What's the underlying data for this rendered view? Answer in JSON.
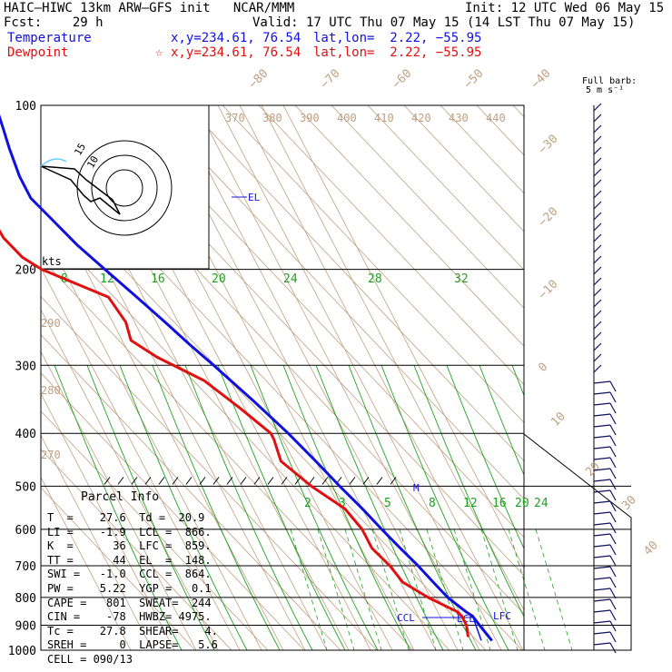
{
  "header": {
    "model": "HAIC–HIWC 13km ARW–GFS init",
    "org": "NCAR/MMM",
    "init": "Init: 12 UTC Wed 06 May 15",
    "fcst": "Fcst:    29 h",
    "valid": "Valid: 17 UTC Thu 07 May 15 (14 LST Thu 07 May 15)",
    "temp_label": "Temperature",
    "temp_xy": "x,y=234.61, 76.54",
    "temp_latlon": "lat,lon=  2.22, −55.95",
    "dew_label": "Dewpoint",
    "dew_xy": "x,y=234.61, 76.54",
    "dew_latlon": "lat,lon=  2.22, −55.95",
    "star": "☆"
  },
  "barb_key": {
    "line1": "Full barb:",
    "line2": "5 m s⁻¹"
  },
  "parcel": {
    "title": "Parcel Info",
    "rows": [
      "T  =    27.6  Td =  20.9",
      "LI =    -1.9  LCL =  866.",
      "K  =      36  LFC =  859.",
      "TT =      44  EL  =  148.",
      "SWI =   -1.0  CCL =  864.",
      "PW =    5.22  YGP =   0.1",
      "CAPE =   801  SWEAT=  244",
      "CIN =    -78  HWBZ= 4975.",
      "Tc =    27.8  SHEAR=    4.",
      "SREH =     0  LAPSE=   5.6",
      "CELL = 090/13"
    ]
  },
  "hodograph": {
    "units_label": "kts",
    "ring_labels": [
      "10",
      "15"
    ]
  },
  "chart_data": {
    "type": "line",
    "title": "",
    "xlabel": "",
    "ylabel": "",
    "pressure_axis": {
      "label_values": [
        100,
        200,
        300,
        400,
        500,
        600,
        700,
        800,
        900,
        1000
      ],
      "scale": "log"
    },
    "isotherm_labels": [
      "−80",
      "−70",
      "−60",
      "−50",
      "−40",
      "−30",
      "−20",
      "−10",
      "0",
      "10",
      "20",
      "30",
      "40"
    ],
    "theta_labels_top": [
      "370",
      "380",
      "390",
      "400",
      "410",
      "420",
      "430",
      "440"
    ],
    "theta_labels_left": [
      "290",
      "280",
      "270"
    ],
    "mixing_ratio_labels_upper": [
      "8",
      "12",
      "16",
      "20",
      "24",
      "28",
      "32"
    ],
    "mixing_ratio_labels_lower": [
      "2",
      "3",
      "5",
      "8",
      "12",
      "16",
      "20",
      "24"
    ],
    "series": [
      {
        "name": "Temperature",
        "color": "#1010e0",
        "points": [
          [
            100,
            -72
          ],
          [
            110,
            -74
          ],
          [
            120,
            -76
          ],
          [
            135,
            -78
          ],
          [
            148,
            -78
          ],
          [
            160,
            -74
          ],
          [
            180,
            -68
          ],
          [
            200,
            -61
          ],
          [
            225,
            -53
          ],
          [
            250,
            -46
          ],
          [
            275,
            -40
          ],
          [
            300,
            -34
          ],
          [
            350,
            -24
          ],
          [
            400,
            -16
          ],
          [
            450,
            -10
          ],
          [
            500,
            -5
          ],
          [
            550,
            0
          ],
          [
            600,
            4
          ],
          [
            650,
            8
          ],
          [
            700,
            12
          ],
          [
            750,
            15
          ],
          [
            800,
            18
          ],
          [
            850,
            23
          ],
          [
            866,
            25
          ],
          [
            900,
            26
          ],
          [
            960,
            28
          ]
        ]
      },
      {
        "name": "Dewpoint",
        "color": "#e01010",
        "points": [
          [
            100,
            -100
          ],
          [
            150,
            -101
          ],
          [
            175,
            -100
          ],
          [
            190,
            -96
          ],
          [
            200,
            -90
          ],
          [
            225,
            -66
          ],
          [
            250,
            -64
          ],
          [
            270,
            -66
          ],
          [
            290,
            -58
          ],
          [
            320,
            -42
          ],
          [
            360,
            -32
          ],
          [
            400,
            -24
          ],
          [
            410,
            -24
          ],
          [
            450,
            -26
          ],
          [
            500,
            -18
          ],
          [
            550,
            -8
          ],
          [
            600,
            -5
          ],
          [
            650,
            -5
          ],
          [
            700,
            -1
          ],
          [
            750,
            1
          ],
          [
            800,
            9
          ],
          [
            850,
            19
          ],
          [
            866,
            20
          ],
          [
            900,
            20
          ],
          [
            945,
            18
          ]
        ]
      }
    ],
    "annotations": [
      "EL",
      "CCL",
      "LCL",
      "LFC",
      "M"
    ]
  }
}
